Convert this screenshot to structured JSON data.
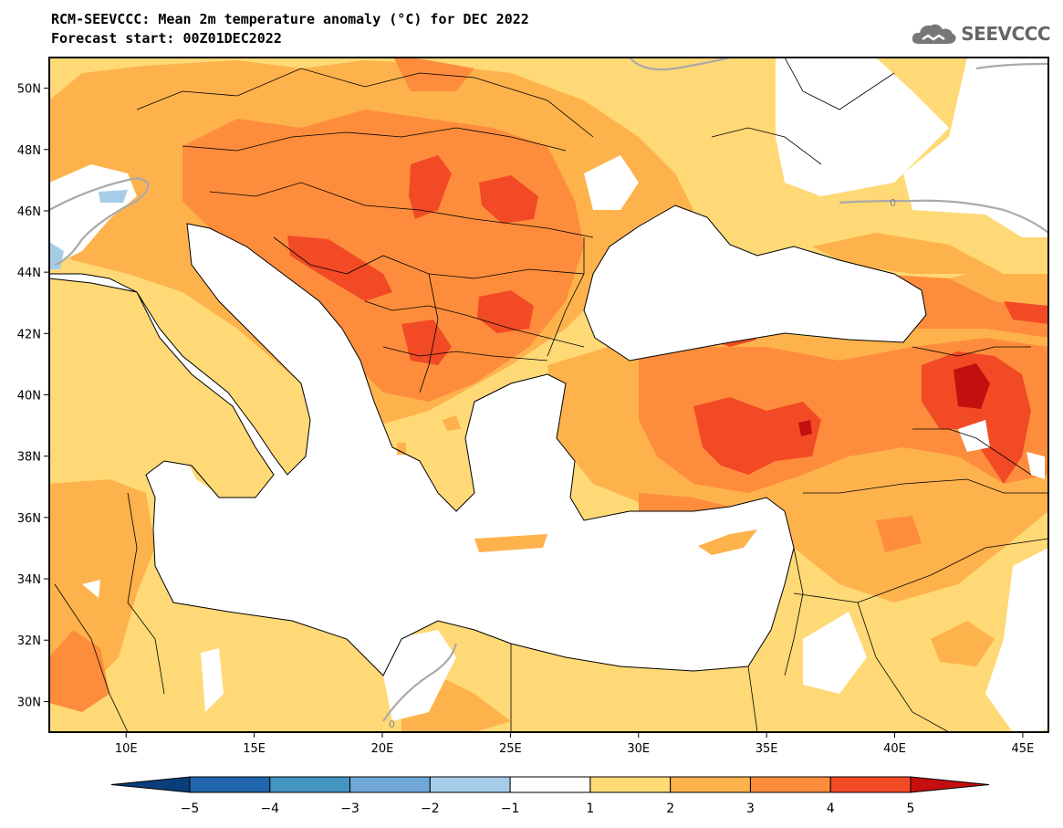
{
  "header": {
    "title": "RCM-SEEVCCC: Mean 2m temperature anomaly (°C) for DEC 2022",
    "subtitle": "Forecast start: 00Z01DEC2022"
  },
  "logo": {
    "text": "SEEVCCC",
    "icon": "cloud-icon",
    "color": "#666666"
  },
  "map": {
    "lon_range": [
      7,
      46
    ],
    "lat_range": [
      29,
      51
    ],
    "lat_ticks": [
      "30N",
      "32N",
      "34N",
      "36N",
      "38N",
      "40N",
      "42N",
      "44N",
      "46N",
      "48N",
      "50N"
    ],
    "lon_ticks": [
      "10E",
      "15E",
      "20E",
      "25E",
      "30E",
      "35E",
      "40E",
      "45E"
    ],
    "contour_label": "0"
  },
  "colorbar": {
    "levels": [
      "−5",
      "−4",
      "−3",
      "−2",
      "−1",
      "1",
      "2",
      "3",
      "4",
      "5"
    ],
    "colors": [
      "#0a3d7a",
      "#2166ac",
      "#4393c3",
      "#6fa8d6",
      "#a6cde8",
      "#ffffff",
      "#fed976",
      "#feb24c",
      "#fd8d3c",
      "#f24a25",
      "#c40f0f"
    ]
  }
}
